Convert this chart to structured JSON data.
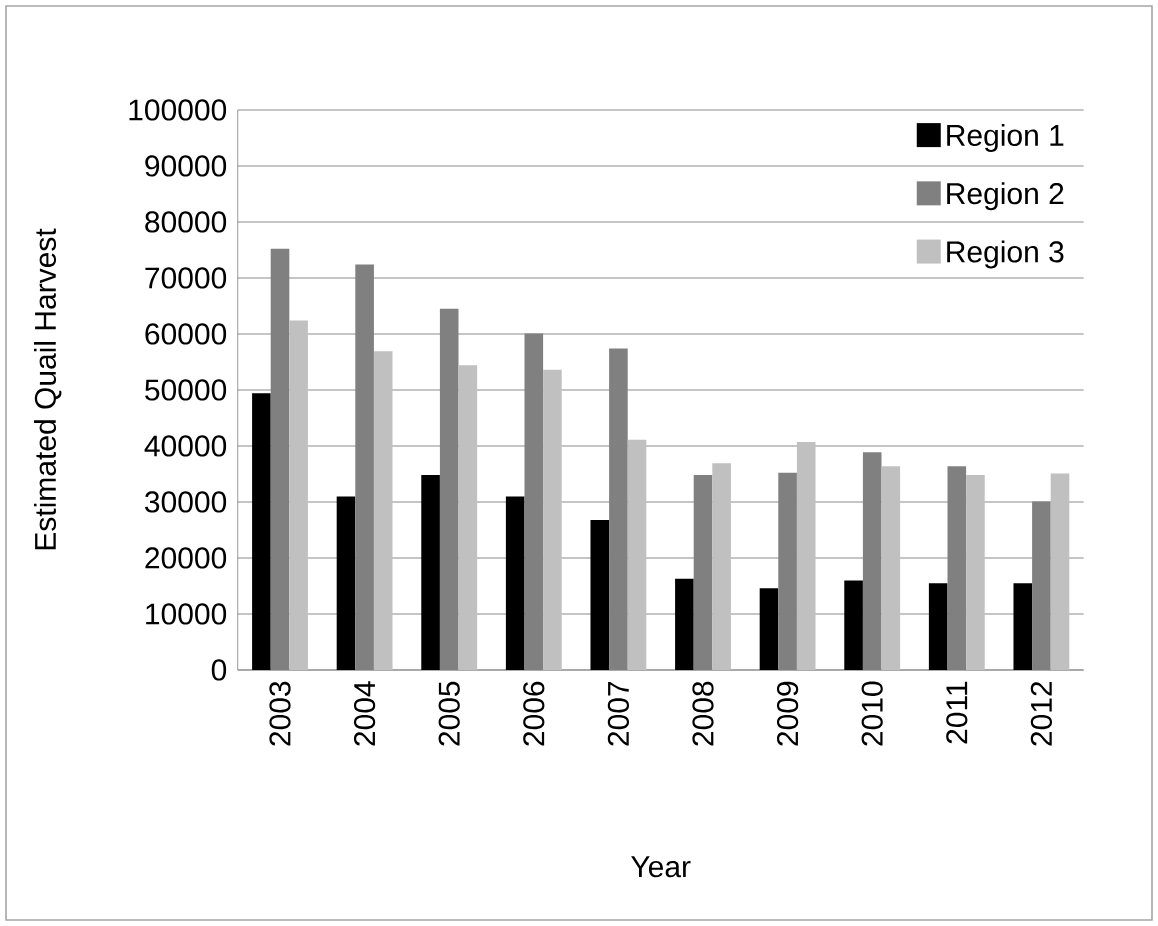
{
  "chart_data": {
    "type": "bar",
    "xlabel": "Year",
    "ylabel": "Estimated Quail Harvest",
    "categories": [
      "2003",
      "2004",
      "2005",
      "2006",
      "2007",
      "2008",
      "2009",
      "2010",
      "2011",
      "2012"
    ],
    "series": [
      {
        "name": "Region 1",
        "color": "#000000",
        "values": [
          49400,
          31000,
          34800,
          31000,
          26800,
          16300,
          14600,
          16000,
          15500,
          15500
        ]
      },
      {
        "name": "Region 2",
        "color": "#808080",
        "values": [
          75200,
          72400,
          64500,
          60100,
          57400,
          34800,
          35200,
          38900,
          36400,
          30100
        ]
      },
      {
        "name": "Region 3",
        "color": "#c0c0c0",
        "values": [
          62400,
          56900,
          54400,
          53600,
          41100,
          36900,
          40700,
          36400,
          34800,
          35100
        ]
      }
    ],
    "ylim": [
      0,
      100000
    ],
    "yticks": [
      0,
      10000,
      20000,
      30000,
      40000,
      50000,
      60000,
      70000,
      80000,
      90000,
      100000
    ],
    "grid": "y",
    "legend": "top right"
  }
}
